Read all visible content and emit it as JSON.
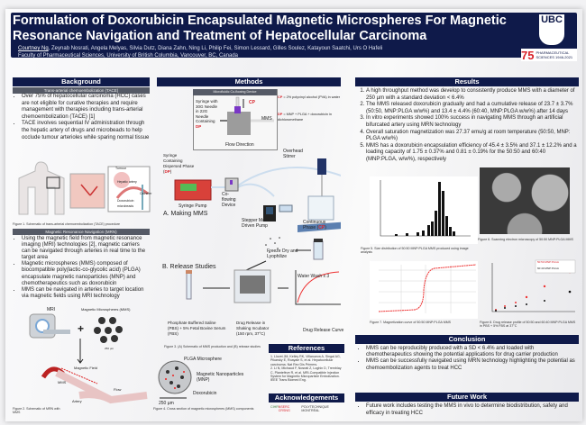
{
  "header": {
    "title": "Formulation of Doxorubicin Encapsulated Magnetic Microspheres For Magnetic Resonance Navigation and Treatment of Hepatocellular Carcinoma",
    "presenting_author": "Courtney Ng",
    "coauthors": ", Zeynab Nosrati, Angela Melyas, Silvia Dutz, Diana Zahn, Ning Li, Philip Fei, Simon Lessard, Gilles Soulez, Katayoun Saatchi, Urs O Hafeli",
    "affiliation": "Faculty of Pharmaceutical Sciences, University of British Columbia, Vancouver, BC, Canada",
    "logo_text": "UBC",
    "anniversary_number": "75",
    "anniversary_text": "PHARMACEUTICAL SCIENCES 1946-2021"
  },
  "background": {
    "heading": "Background",
    "sub1": "Trans-arterial chemoembolization (TACE)",
    "bullets1": [
      "Over 75% of hepatocellular carcinoma (HCC) cases are not eligible for curative therapies and require management with therapies including trans-arterial chemoembolization (TACE) [1]",
      "TACE involves sequential IV administration through the hepatic artery of drugs and microbeads to help occlude tumour arterioles while sparing normal tissue"
    ],
    "fig1_labels": [
      "Tumour",
      "Hepatic artery",
      "Doxorubicin microbeads",
      "Catheter"
    ],
    "fig1_caption": "Figure 1. Schematic of trans-arterial chemoembolization (TACE) procedure",
    "sub2": "Magnetic Resonance Navigation (MRN)",
    "bullets2": [
      "Using the magnetic field from magnetic resonance imaging (MRI) technologies [2], magnetic carriers can be navigated through arteries in real time to the target area",
      "Magnetic microspheres (MMS) composed of biocompatible poly(lactic-co-glycolic acid) (PLGA) encapsulate magnetic nanoparticles (MNP) and chemotherapeutics such as doxorubicin",
      "MMS can be navigated in arteries to target location via magnetic fields using MRI technology"
    ],
    "fig2_labels": {
      "mri": "MRI",
      "mms": "Magnetic Microspheres (MMS)",
      "scale": "250 µm",
      "gradient": "Magnetic Field",
      "mms_short": "MMS",
      "flow": "Flow",
      "artery": "Artery"
    },
    "fig2_caption": "Figure 2. Schematic of MRN with MMS"
  },
  "methods": {
    "heading": "Methods",
    "inset_title": "Microfluidic Co-flowing Device",
    "inset_syringe": "Syringe with 30G Needle in 22G Needle Containing",
    "dp": "DP",
    "cp": "CP",
    "inset_mms": "MMS",
    "inset_flow": "Flow Direction",
    "cp_def": " = 2% polyvinyl alcohol (PVA) in water",
    "dp_def": " = MNP + PLGA + doxorubicin in dichloromethane",
    "syringe_dp": "Syringe Containing Dispersed Phase (",
    "syringe_pump": "Syringe Pump",
    "coflow": "Co-flowing Device",
    "stepper": "Stepper Motor Driven Pump",
    "stirrer": "Overhead Stirrer",
    "continuous": "Continuous Phase (",
    "section_a": "A. Making MMS",
    "section_b": "B. Release Studies",
    "freeze": "Freeze Dry and Lyophilize",
    "wash": "Water Wash x 3",
    "pbs": "Phosphate Buffered Saline (PBS) + 5% Fetal Bovine Serum (FBS)",
    "incubator": "Drug Release in Shaking Incubator (150 rpm, 37°C)",
    "curve": "Drug Release Curve",
    "fig3_caption": "Figure 3. (A) Schematic of MMS production and (B) release studies",
    "plga": "PLGA Microsphere",
    "mnp": "Magnetic Nanoparticles (MNP)",
    "dox": "Doxorubicin",
    "scale": "250 µm",
    "fig4_caption": "Figure 4. Cross section of magnetic microspheres (MMS) components"
  },
  "references": {
    "heading": "References",
    "items": [
      "1. Llovet JM, Kelley RK, Villanueva A, Singal AG, Pikarsky E, Roayaie S, et al. Hepatocellular carcinoma. Nat Rev Dis Primers.",
      "2. Li N, Michaud F, Nosrati Z, Loghin D, Tremblay C, Plantefève R, et al. MRI-Compatible Injection System for Magnetic Microparticle Embolization. IEEE Trans Biomed Eng."
    ]
  },
  "acknowledgements": {
    "heading": "Acknowledgements",
    "logos": [
      "CIHR",
      "NSERC CRSNG",
      "POLYTECHNIQUE MONTRÉAL"
    ]
  },
  "results": {
    "heading": "Results",
    "items": [
      "A high throughput method was develop to consistently produce MMS with a diameter of 250 µm with a standard deviation < 6.4%",
      "The MMS released doxorubicin gradually and had a cumulative release of 23.7 ± 3.7% (50:50, MNP:PLGA w/w%) and 13.4 ± 4.4% (60:40, MNP:PLGA w/w%) after 14 days",
      "In vitro experiments showed 100% success in navigating MMS through an artificial bifurcated artery using MRN technology",
      "Overall saturation magnetization was 27.37 emu/g at room temperature (50:50, MNP: PLGA w/w%)",
      "MMS has a doxorubicin encapsulation efficiency of 45.4 ± 3.5% and 37.1 ± 12.2% and a loading capacity of 1.75 ± 0.37% and 0.81 ± 0.19% for the 50:50 and 60:40 (MNP:PLGA, w/w%), respectively"
    ],
    "fig5_caption": "Figure 5. Size distribution of 50:50 MNP:PLGA MMS produced using image analysis",
    "fig6_caption": "Figure 6. Scanning electron microscopy of 50:50 MNP:PLGA MMS",
    "fig7_caption": "Figure 7. Magnetization curve of 50:50 MNP:PLGA MMS",
    "fig8_caption": "Figure 8. Drug release profile of 50:50 and 60:40 MNP:PLGA MMS in PBS + 5% FBS at 37°C",
    "fig8_legend": [
      "50:50 MNP:PLGA",
      "60:40 MNP:PLGA"
    ]
  },
  "conclusion": {
    "heading": "Conclusion",
    "bullets": [
      "MMS can be reproducibly produced with a SD < 6.4% and loaded with chemotherapeutics showing the potential applications for drug carrier production",
      "MMS can be successfully navigated using MRN technology highlighting the potential as chemoembolization agents to treat HCC"
    ]
  },
  "future_work": {
    "heading": "Future Work",
    "bullets": [
      "Future work includes testing the MMS in vivo to determine biodistribution, safety and efficacy in treating HCC"
    ]
  },
  "colors": {
    "navy": "#0f1a4a",
    "accent_red": "#d8232a"
  }
}
